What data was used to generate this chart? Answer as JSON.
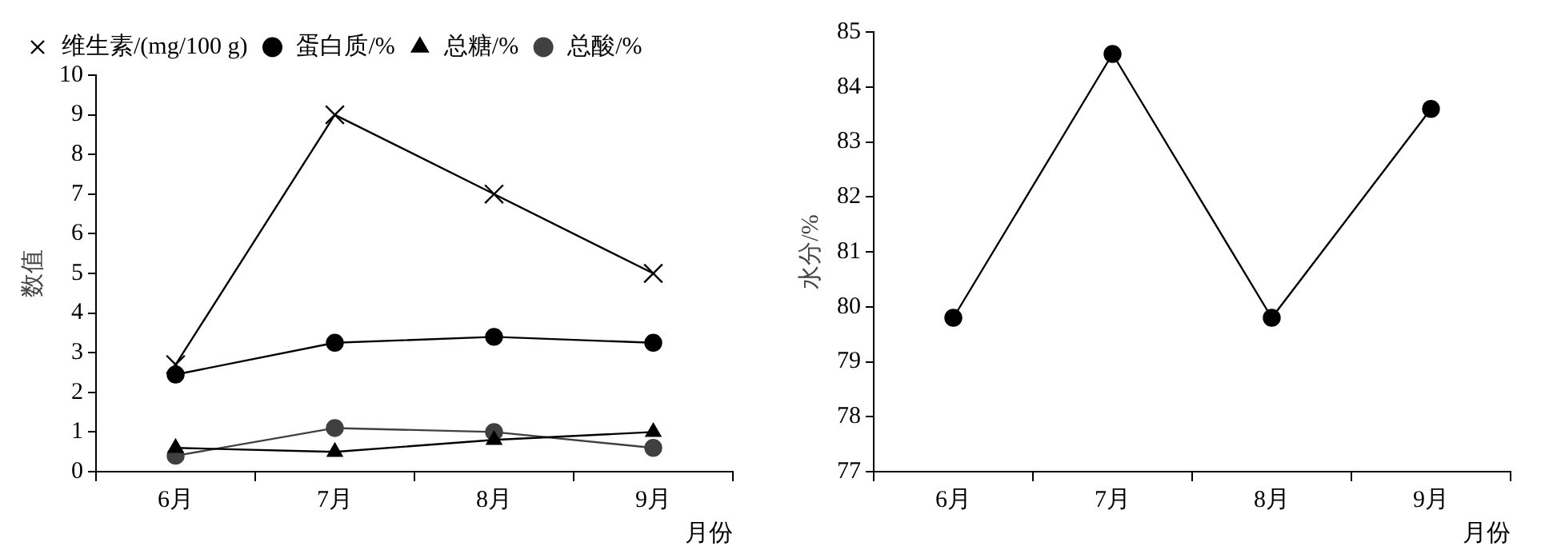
{
  "chart_data": [
    {
      "type": "line",
      "categories": [
        "6月",
        "7月",
        "8月",
        "9月"
      ],
      "xlabel": "月份",
      "ylabel": "数值",
      "ylim": [
        0,
        10
      ],
      "yticks": [
        0,
        1,
        2,
        3,
        4,
        5,
        6,
        7,
        8,
        9,
        10
      ],
      "grid": false,
      "legend": "top left",
      "line_style": "solid",
      "series": [
        {
          "name": "蛋白质/%",
          "color": "#000000",
          "marker": "circle",
          "values": [
            2.45,
            3.25,
            3.4,
            3.25
          ]
        },
        {
          "name": "总糖/%",
          "color": "#000000",
          "marker": "triangle",
          "values": [
            0.6,
            0.5,
            0.8,
            1.0
          ]
        },
        {
          "name": "维生素/(mg/100 g)",
          "color": "#000000",
          "marker": "cross",
          "values": [
            2.7,
            9.0,
            7.0,
            5.0
          ]
        },
        {
          "name": "总酸/%",
          "color": "#404040",
          "marker": "circle",
          "values": [
            0.4,
            1.1,
            1.0,
            0.6
          ]
        }
      ]
    },
    {
      "type": "line",
      "categories": [
        "6月",
        "7月",
        "8月",
        "9月"
      ],
      "xlabel": "月份",
      "ylabel": "水分/%",
      "ylim": [
        77,
        85
      ],
      "yticks": [
        77,
        78,
        79,
        80,
        81,
        82,
        83,
        84,
        85
      ],
      "grid": false,
      "legend": false,
      "marker": "circle",
      "line_style": "solid",
      "series": [
        {
          "color": "#000000",
          "values": [
            79.8,
            84.6,
            79.8,
            83.6
          ]
        }
      ]
    }
  ]
}
